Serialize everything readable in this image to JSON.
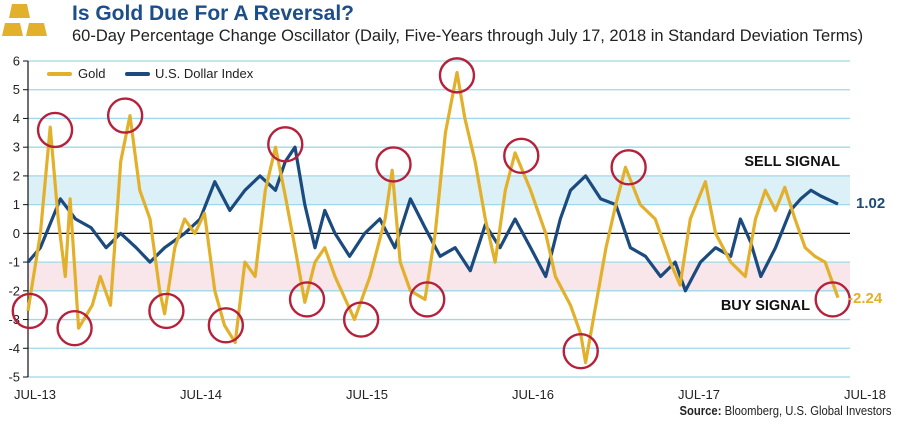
{
  "header": {
    "title": "Is Gold Due For A Reversal?",
    "subtitle": "60-Day Percentage Change Oscillator (Daily, Five-Years through July 17, 2018 in Standard Deviation Terms)",
    "logo_icon": "gold-bars-icon"
  },
  "source": {
    "label": "Source:",
    "text": "Bloomberg, U.S. Global Investors"
  },
  "colors": {
    "gold": "#e3b02b",
    "dollar": "#1b4a7e",
    "circle": "#b5203a",
    "sell_band": "#dcf0f8",
    "buy_band": "#f8e6ea",
    "grid": "#9fd8ea",
    "title": "#1d4e89"
  },
  "chart_data": {
    "type": "line",
    "title": "Is Gold Due For A Reversal?",
    "subtitle": "60-Day Percentage Change Oscillator (Daily, Five-Years through July 17, 2018 in Standard Deviation Terms)",
    "xlabel": "",
    "ylabel": "",
    "xlim": [
      "2013-07-17",
      "2018-07-17"
    ],
    "ylim": [
      -5,
      6
    ],
    "grid": true,
    "legend": "top-left",
    "x_ticks": [
      "JUL-13",
      "JUL-14",
      "JUL-15",
      "JUL-16",
      "JUL-17",
      "JUL-18"
    ],
    "y_ticks": [
      "6",
      "5",
      "4",
      "3",
      "2",
      "1",
      "0",
      "-1",
      "-2",
      "-3",
      "-4",
      "-5"
    ],
    "bands": [
      {
        "label": "SELL SIGNAL",
        "from": 1,
        "to": 2
      },
      {
        "label": "BUY SIGNAL",
        "from": -2,
        "to": -1
      }
    ],
    "series": [
      {
        "name": "Gold",
        "end_label": "-2.24",
        "points": [
          [
            "2013-07-17",
            -2.7
          ],
          [
            "2013-08-14",
            0
          ],
          [
            "2013-09-05",
            3.7
          ],
          [
            "2013-09-23",
            0.5
          ],
          [
            "2013-10-09",
            -1.5
          ],
          [
            "2013-10-20",
            1.2
          ],
          [
            "2013-11-08",
            -3.3
          ],
          [
            "2013-12-09",
            -2.5
          ],
          [
            "2013-12-27",
            -1.5
          ],
          [
            "2014-01-19",
            -2.5
          ],
          [
            "2014-02-11",
            2.5
          ],
          [
            "2014-03-04",
            4.1
          ],
          [
            "2014-03-26",
            1.5
          ],
          [
            "2014-04-18",
            0.5
          ],
          [
            "2014-05-10",
            -2
          ],
          [
            "2014-05-21",
            -2.8
          ],
          [
            "2014-06-13",
            -0.5
          ],
          [
            "2014-07-05",
            0.5
          ],
          [
            "2014-07-28",
            0
          ],
          [
            "2014-08-19",
            0.7
          ],
          [
            "2014-09-11",
            -2
          ],
          [
            "2014-10-03",
            -3.2
          ],
          [
            "2014-10-27",
            -3.8
          ],
          [
            "2014-11-18",
            -1
          ],
          [
            "2014-12-11",
            -1.5
          ],
          [
            "2015-01-03",
            1.5
          ],
          [
            "2015-01-26",
            3.0
          ],
          [
            "2015-02-17",
            1.3
          ],
          [
            "2015-03-11",
            -0.5
          ],
          [
            "2015-04-02",
            -2.4
          ],
          [
            "2015-04-25",
            -1
          ],
          [
            "2015-05-17",
            -0.5
          ],
          [
            "2015-06-09",
            -1.5
          ],
          [
            "2015-07-23",
            -3
          ],
          [
            "2015-08-27",
            -1.5
          ],
          [
            "2015-09-30",
            0.5
          ],
          [
            "2015-10-16",
            2.2
          ],
          [
            "2015-11-03",
            -1
          ],
          [
            "2015-11-26",
            -2
          ],
          [
            "2015-12-29",
            -2.3
          ],
          [
            "2016-01-21",
            0
          ],
          [
            "2016-02-13",
            3.5
          ],
          [
            "2016-03-10",
            5.6
          ],
          [
            "2016-03-28",
            4
          ],
          [
            "2016-04-20",
            2.5
          ],
          [
            "2016-05-13",
            0.5
          ],
          [
            "2016-06-04",
            -1
          ],
          [
            "2016-06-27",
            1.5
          ],
          [
            "2016-07-19",
            2.8
          ],
          [
            "2016-08-23",
            1.5
          ],
          [
            "2016-09-26",
            0
          ],
          [
            "2016-10-18",
            -1.5
          ],
          [
            "2016-11-21",
            -2.5
          ],
          [
            "2016-12-14",
            -3.5
          ],
          [
            "2016-12-25",
            -4.5
          ],
          [
            "2017-01-17",
            -2.5
          ],
          [
            "2017-02-09",
            -0.5
          ],
          [
            "2017-03-03",
            1
          ],
          [
            "2017-03-25",
            2.3
          ],
          [
            "2017-04-27",
            1
          ],
          [
            "2017-05-31",
            0.5
          ],
          [
            "2017-07-04",
            -1
          ],
          [
            "2017-07-26",
            -1.8
          ],
          [
            "2017-08-18",
            0.5
          ],
          [
            "2017-09-21",
            1.8
          ],
          [
            "2017-10-14",
            0
          ],
          [
            "2017-11-17",
            -1
          ],
          [
            "2017-12-20",
            -1.5
          ],
          [
            "2018-01-12",
            0.5
          ],
          [
            "2018-02-03",
            1.5
          ],
          [
            "2018-02-26",
            0.8
          ],
          [
            "2018-03-19",
            1.6
          ],
          [
            "2018-04-11",
            0.5
          ],
          [
            "2018-05-04",
            -0.5
          ],
          [
            "2018-05-26",
            -0.8
          ],
          [
            "2018-06-18",
            -1
          ],
          [
            "2018-07-17",
            -2.24
          ]
        ]
      },
      {
        "name": "U.S. Dollar Index",
        "end_label": "1.02",
        "points": [
          [
            "2013-07-17",
            -1
          ],
          [
            "2013-08-14",
            -0.5
          ],
          [
            "2013-09-28",
            1.2
          ],
          [
            "2013-11-01",
            0.5
          ],
          [
            "2013-12-06",
            0.2
          ],
          [
            "2014-01-09",
            -0.5
          ],
          [
            "2014-02-11",
            0
          ],
          [
            "2014-03-18",
            -0.5
          ],
          [
            "2014-04-18",
            -1
          ],
          [
            "2014-05-21",
            -0.5
          ],
          [
            "2014-07-05",
            0
          ],
          [
            "2014-08-09",
            0.5
          ],
          [
            "2014-09-11",
            1.8
          ],
          [
            "2014-10-15",
            0.8
          ],
          [
            "2014-11-18",
            1.5
          ],
          [
            "2014-12-22",
            2
          ],
          [
            "2015-01-26",
            1.5
          ],
          [
            "2015-02-17",
            2.5
          ],
          [
            "2015-03-11",
            3.0
          ],
          [
            "2015-04-02",
            1.0
          ],
          [
            "2015-04-25",
            -0.5
          ],
          [
            "2015-05-17",
            0.8
          ],
          [
            "2015-06-09",
            0
          ],
          [
            "2015-07-12",
            -0.8
          ],
          [
            "2015-08-15",
            0
          ],
          [
            "2015-09-18",
            0.5
          ],
          [
            "2015-10-22",
            -0.5
          ],
          [
            "2015-11-26",
            1.2
          ],
          [
            "2015-12-29",
            0.2
          ],
          [
            "2016-02-01",
            -0.8
          ],
          [
            "2016-03-06",
            -0.5
          ],
          [
            "2016-04-09",
            -1.3
          ],
          [
            "2016-05-13",
            0.3
          ],
          [
            "2016-06-15",
            -0.5
          ],
          [
            "2016-07-19",
            0.5
          ],
          [
            "2016-08-23",
            -0.5
          ],
          [
            "2016-09-26",
            -1.5
          ],
          [
            "2016-10-29",
            0.5
          ],
          [
            "2016-11-21",
            1.5
          ],
          [
            "2016-12-25",
            2
          ],
          [
            "2017-01-28",
            1.2
          ],
          [
            "2017-03-03",
            1
          ],
          [
            "2017-04-05",
            -0.5
          ],
          [
            "2017-05-09",
            -0.8
          ],
          [
            "2017-06-12",
            -1.5
          ],
          [
            "2017-07-15",
            -1
          ],
          [
            "2017-08-07",
            -2
          ],
          [
            "2017-09-10",
            -1
          ],
          [
            "2017-10-14",
            -0.5
          ],
          [
            "2017-11-17",
            -0.8
          ],
          [
            "2017-12-09",
            0.5
          ],
          [
            "2018-01-01",
            -0.3
          ],
          [
            "2018-01-24",
            -1.5
          ],
          [
            "2018-02-26",
            -0.5
          ],
          [
            "2018-04-01",
            0.8
          ],
          [
            "2018-04-24",
            1.2
          ],
          [
            "2018-05-17",
            1.5
          ],
          [
            "2018-06-08",
            1.3
          ],
          [
            "2018-07-17",
            1.02
          ]
        ]
      }
    ],
    "highlight_circles": [
      [
        "2013-07-21",
        -2.7
      ],
      [
        "2013-09-16",
        3.6
      ],
      [
        "2013-10-30",
        -3.3
      ],
      [
        "2014-02-21",
        4.1
      ],
      [
        "2014-05-25",
        -2.7
      ],
      [
        "2014-10-06",
        -3.2
      ],
      [
        "2015-02-17",
        3.1
      ],
      [
        "2015-04-07",
        -2.3
      ],
      [
        "2015-08-07",
        -3.0
      ],
      [
        "2015-10-19",
        2.4
      ],
      [
        "2016-01-03",
        -2.3
      ],
      [
        "2016-03-10",
        5.5
      ],
      [
        "2016-08-02",
        2.7
      ],
      [
        "2016-12-14",
        -4.1
      ],
      [
        "2017-04-01",
        2.3
      ],
      [
        "2018-07-05",
        -2.3
      ]
    ]
  }
}
